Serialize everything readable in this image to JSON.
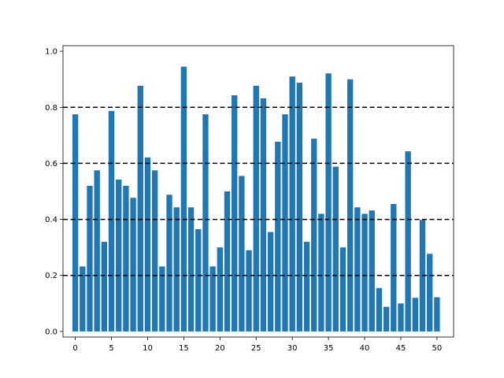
{
  "chart_data": {
    "type": "bar",
    "bar_color": "#1f77b4",
    "reference_line_color": "#000000",
    "reference_lines": [
      0.2,
      0.4,
      0.6,
      0.8
    ],
    "xlim": [
      -1.7,
      52.3
    ],
    "ylim": [
      -0.02,
      1.02
    ],
    "xticks": [
      0,
      5,
      10,
      15,
      20,
      25,
      30,
      35,
      40,
      45,
      50
    ],
    "yticks": [
      0.0,
      0.2,
      0.4,
      0.6,
      0.8,
      1.0
    ],
    "xtick_labels": [
      "0",
      "5",
      "10",
      "15",
      "20",
      "25",
      "30",
      "35",
      "40",
      "45",
      "50"
    ],
    "ytick_labels": [
      "0.0",
      "0.2",
      "0.4",
      "0.6",
      "0.8",
      "1.0"
    ],
    "title": "",
    "xlabel": "",
    "ylabel": "",
    "grid": false,
    "x": [
      0,
      1,
      2,
      3,
      4,
      5,
      6,
      7,
      8,
      9,
      10,
      11,
      12,
      13,
      14,
      15,
      16,
      17,
      18,
      19,
      20,
      21,
      22,
      23,
      24,
      25,
      26,
      27,
      28,
      29,
      30,
      31,
      32,
      33,
      34,
      35,
      36,
      37,
      38,
      39,
      40,
      41,
      42,
      43,
      44,
      45,
      46,
      47,
      48,
      49,
      50
    ],
    "values": [
      0.775,
      0.232,
      0.52,
      0.575,
      0.32,
      0.787,
      0.542,
      0.52,
      0.477,
      0.877,
      0.621,
      0.575,
      0.232,
      0.488,
      0.443,
      0.945,
      0.443,
      0.365,
      0.775,
      0.232,
      0.3,
      0.5,
      0.843,
      0.555,
      0.29,
      0.877,
      0.832,
      0.355,
      0.677,
      0.775,
      0.91,
      0.888,
      0.32,
      0.688,
      0.42,
      0.921,
      0.588,
      0.3,
      0.9,
      0.443,
      0.42,
      0.432,
      0.155,
      0.088,
      0.455,
      0.1,
      0.643,
      0.12,
      0.398,
      0.277,
      0.122
    ]
  }
}
